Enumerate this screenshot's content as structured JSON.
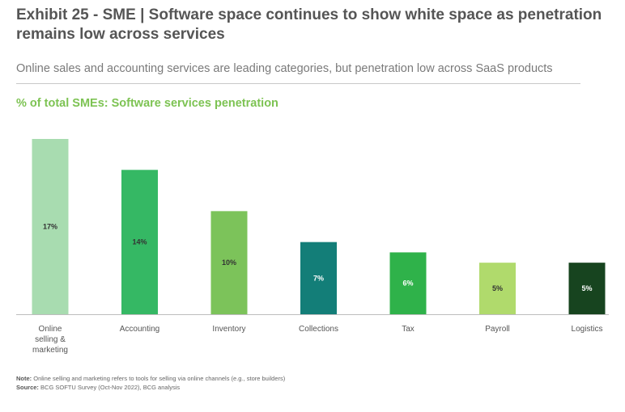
{
  "header": {
    "title": "Exhibit 25 - SME | Software space continues to show white space as penetration remains low across services",
    "subtitle": "Online sales and accounting services are leading categories, but penetration low across SaaS products"
  },
  "chart_data": {
    "type": "bar",
    "title": "% of total SMEs: Software services penetration",
    "categories": [
      "Online selling & marketing",
      "Accounting",
      "Inventory",
      "Collections",
      "Tax",
      "Payroll",
      "Logistics"
    ],
    "values": [
      17,
      14,
      10,
      7,
      6,
      5,
      5
    ],
    "value_labels": [
      "17%",
      "14%",
      "10%",
      "7%",
      "6%",
      "5%",
      "5%"
    ],
    "colors": [
      "#a8dcb0",
      "#35b864",
      "#7cc35a",
      "#137e78",
      "#2fb24a",
      "#b0da6c",
      "#17441f"
    ],
    "label_colors": [
      "#333333",
      "#333333",
      "#333333",
      "#ffffff",
      "#ffffff",
      "#333333",
      "#ffffff"
    ],
    "ylim": [
      0,
      17
    ],
    "xlabel": "",
    "ylabel": ""
  },
  "footnotes": {
    "note_label": "Note:",
    "note_text": " Online selling and marketing refers to tools for selling via online channels (e.g., store builders)",
    "source_label": "Source:",
    "source_text": " BCG SOFTU Survey (Oct-Nov 2022), BCG analysis"
  }
}
